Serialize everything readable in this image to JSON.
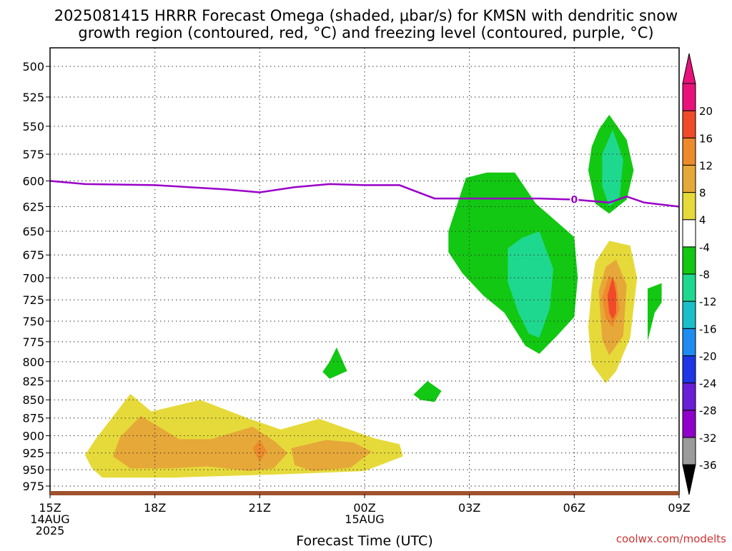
{
  "chart_data": {
    "type": "heatmap",
    "title_lines": [
      "2025081415 HRRR Forecast Omega (shaded, μbar/s) for KMSN with dendritic snow",
      "growth region (contoured, red, °C) and freezing level (contoured, purple, °C)"
    ],
    "xlabel": "Forecast Time (UTC)",
    "credit": "coolwx.com/modelts",
    "x_ticks": [
      {
        "hour": 0,
        "lines": [
          "15Z",
          "14AUG",
          "2025"
        ]
      },
      {
        "hour": 3,
        "lines": [
          "18Z"
        ]
      },
      {
        "hour": 6,
        "lines": [
          "21Z"
        ]
      },
      {
        "hour": 9,
        "lines": [
          "00Z",
          "15AUG"
        ]
      },
      {
        "hour": 12,
        "lines": [
          "03Z"
        ]
      },
      {
        "hour": 15,
        "lines": [
          "06Z"
        ]
      },
      {
        "hour": 18,
        "lines": [
          "09Z"
        ]
      }
    ],
    "xlim": [
      0,
      18
    ],
    "y_axis": {
      "label": "",
      "ticks": [
        500,
        525,
        550,
        575,
        600,
        625,
        650,
        675,
        700,
        725,
        750,
        775,
        800,
        825,
        850,
        875,
        900,
        925,
        950,
        975
      ],
      "range_hpa": [
        475,
        1000
      ],
      "scale": "log",
      "inverted": true
    },
    "grid": true,
    "colorbar": {
      "levels": [
        -36,
        -32,
        -28,
        -24,
        -20,
        -16,
        -12,
        -8,
        -4,
        4,
        8,
        12,
        16,
        20
      ],
      "colors": [
        "#9b9b9b",
        "#8f00c8",
        "#6a1fd6",
        "#1f35e6",
        "#1e8cf0",
        "#1bbfc9",
        "#1fd88f",
        "#12c812",
        "#ffffff",
        "#e6da3a",
        "#e6a838",
        "#ec8a2c",
        "#f04a2a",
        "#e8127a"
      ],
      "under_color": "#000000",
      "over_color": "#e8127a"
    },
    "omega_regions": [
      {
        "level": "4",
        "color": "#e6da3a",
        "polygon": [
          [
            1.2,
            948
          ],
          [
            1.0,
            928
          ],
          [
            1.3,
            905
          ],
          [
            2.3,
            842
          ],
          [
            2.9,
            866
          ],
          [
            4.3,
            850
          ],
          [
            5.7,
            876
          ],
          [
            6.6,
            891
          ],
          [
            7.7,
            876
          ],
          [
            9.3,
            904
          ],
          [
            10.0,
            912
          ],
          [
            10.1,
            930
          ],
          [
            9.0,
            952
          ],
          [
            6.6,
            957
          ],
          [
            3.5,
            962
          ],
          [
            1.5,
            962
          ]
        ]
      },
      {
        "level": "8",
        "color": "#e6a838",
        "polygon": [
          [
            1.8,
            930
          ],
          [
            2.0,
            902
          ],
          [
            2.6,
            872
          ],
          [
            3.7,
            905
          ],
          [
            4.6,
            905
          ],
          [
            5.8,
            887
          ],
          [
            6.4,
            907
          ],
          [
            6.8,
            925
          ],
          [
            6.4,
            948
          ],
          [
            5.7,
            952
          ],
          [
            4.5,
            945
          ],
          [
            3.4,
            948
          ],
          [
            2.3,
            948
          ]
        ]
      },
      {
        "level": "8",
        "color": "#e6a838",
        "polygon": [
          [
            6.9,
            918
          ],
          [
            7.9,
            906
          ],
          [
            8.7,
            910
          ],
          [
            9.2,
            923
          ],
          [
            8.6,
            947
          ],
          [
            7.5,
            952
          ],
          [
            7.0,
            943
          ]
        ]
      },
      {
        "level": "12",
        "color": "#ec8a2c",
        "polygon": [
          [
            5.8,
            918
          ],
          [
            6.0,
            906
          ],
          [
            6.2,
            922
          ],
          [
            6.0,
            938
          ]
        ]
      },
      {
        "level": "4",
        "color": "#e6da3a",
        "polygon": [
          [
            15.5,
            712
          ],
          [
            15.6,
            683
          ],
          [
            16.0,
            660
          ],
          [
            16.6,
            665
          ],
          [
            16.8,
            700
          ],
          [
            16.6,
            770
          ],
          [
            16.2,
            812
          ],
          [
            15.9,
            828
          ],
          [
            15.5,
            803
          ],
          [
            15.4,
            757
          ]
        ]
      },
      {
        "level": "8",
        "color": "#e6a838",
        "polygon": [
          [
            15.7,
            715
          ],
          [
            15.9,
            688
          ],
          [
            16.2,
            680
          ],
          [
            16.5,
            708
          ],
          [
            16.4,
            768
          ],
          [
            16.0,
            792
          ],
          [
            15.8,
            772
          ]
        ]
      },
      {
        "level": "12",
        "color": "#ec8a2c",
        "polygon": [
          [
            15.8,
            722
          ],
          [
            16.0,
            697
          ],
          [
            16.2,
            705
          ],
          [
            16.3,
            736
          ],
          [
            16.1,
            757
          ],
          [
            15.9,
            747
          ]
        ]
      },
      {
        "level": "16",
        "color": "#f04a2a",
        "polygon": [
          [
            15.95,
            720
          ],
          [
            16.1,
            699
          ],
          [
            16.2,
            717
          ],
          [
            16.2,
            740
          ],
          [
            16.1,
            748
          ],
          [
            16.0,
            740
          ]
        ]
      },
      {
        "level": "-4",
        "color": "#12c812",
        "polygon": [
          [
            11.4,
            650
          ],
          [
            11.9,
            597
          ],
          [
            12.5,
            592
          ],
          [
            13.3,
            592
          ],
          [
            13.9,
            622
          ],
          [
            15.0,
            656
          ],
          [
            15.1,
            700
          ],
          [
            15.0,
            745
          ],
          [
            14.5,
            768
          ],
          [
            14.0,
            790
          ],
          [
            13.6,
            780
          ],
          [
            13.0,
            740
          ],
          [
            12.4,
            720
          ],
          [
            11.8,
            695
          ],
          [
            11.4,
            672
          ]
        ]
      },
      {
        "level": "-8",
        "color": "#1fd88f",
        "polygon": [
          [
            13.1,
            668
          ],
          [
            13.5,
            657
          ],
          [
            14.0,
            650
          ],
          [
            14.4,
            690
          ],
          [
            14.3,
            735
          ],
          [
            14.0,
            770
          ],
          [
            13.7,
            765
          ],
          [
            13.4,
            740
          ],
          [
            13.1,
            705
          ]
        ]
      },
      {
        "level": "-4",
        "color": "#12c812",
        "polygon": [
          [
            15.5,
            568
          ],
          [
            15.7,
            553
          ],
          [
            16.0,
            540
          ],
          [
            16.5,
            562
          ],
          [
            16.7,
            590
          ],
          [
            16.5,
            618
          ],
          [
            16.0,
            632
          ],
          [
            15.6,
            622
          ],
          [
            15.4,
            590
          ]
        ]
      },
      {
        "level": "-8",
        "color": "#1fd88f",
        "polygon": [
          [
            15.8,
            575
          ],
          [
            16.1,
            553
          ],
          [
            16.4,
            580
          ],
          [
            16.3,
            615
          ],
          [
            16.0,
            625
          ],
          [
            15.8,
            605
          ]
        ]
      },
      {
        "level": "-4",
        "color": "#12c812",
        "polygon": [
          [
            17.1,
            712
          ],
          [
            17.5,
            706
          ],
          [
            17.5,
            728
          ],
          [
            17.3,
            740
          ],
          [
            17.1,
            774
          ]
        ]
      },
      {
        "level": "-4",
        "color": "#12c812",
        "polygon": [
          [
            7.8,
            813
          ],
          [
            8.0,
            800
          ],
          [
            8.2,
            782
          ],
          [
            8.5,
            812
          ],
          [
            8.0,
            822
          ]
        ]
      },
      {
        "level": "-4",
        "color": "#12c812",
        "polygon": [
          [
            10.4,
            843
          ],
          [
            10.8,
            825
          ],
          [
            11.2,
            838
          ],
          [
            11.0,
            853
          ],
          [
            10.6,
            850
          ]
        ]
      }
    ],
    "freezing_level": {
      "label": "0",
      "label_hour": 15.0,
      "color": "#9a00c8",
      "x": [
        0,
        1,
        3,
        5,
        6,
        7,
        8,
        9,
        10,
        11,
        11.5,
        12,
        14,
        15,
        16,
        16.5,
        17,
        18
      ],
      "y": [
        600,
        603,
        604,
        608,
        611,
        606,
        603,
        604,
        604,
        617,
        617,
        617,
        617,
        618,
        621,
        615,
        621,
        625
      ]
    },
    "surface_color": "#a0522d"
  }
}
